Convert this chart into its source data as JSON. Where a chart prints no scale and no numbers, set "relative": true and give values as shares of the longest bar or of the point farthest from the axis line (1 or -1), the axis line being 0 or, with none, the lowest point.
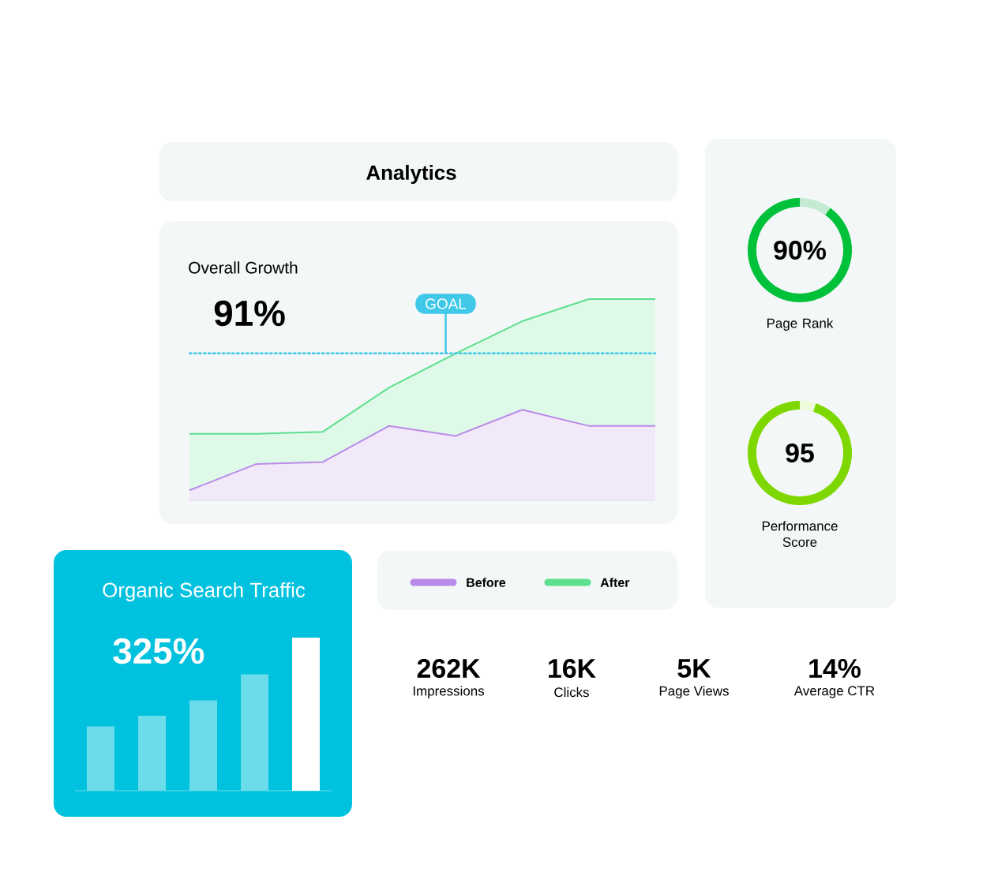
{
  "chart_data": [
    {
      "type": "area",
      "title": "Analytics",
      "subtitle": "Overall Growth",
      "annotations": [
        "91%"
      ],
      "categories": [
        null,
        null,
        null,
        null,
        null,
        null,
        null,
        null
      ],
      "relative": true,
      "legend": "bottom",
      "series": [
        {
          "name": "Before",
          "color": "#b98ae8",
          "values": [
            0.05,
            0.18,
            0.19,
            0.37,
            0.32,
            0.45,
            0.37,
            0.37
          ]
        },
        {
          "name": "After",
          "color": "#5ddf8e",
          "values": [
            0.33,
            0.33,
            0.34,
            0.56,
            0.73,
            0.89,
            1.0,
            1.0
          ]
        }
      ],
      "ref_lines": [
        {
          "axis": "y",
          "value": 0.73,
          "label": "GOAL",
          "color": "#3fc8e8",
          "line_style": "dotted"
        }
      ]
    },
    {
      "type": "donut",
      "title": "Page Rank",
      "annotations": [
        "90%"
      ],
      "categories": [
        null,
        null
      ],
      "values": [
        10,
        90
      ],
      "colors": [
        "#c4ead2",
        "#00c13a"
      ]
    },
    {
      "type": "donut",
      "title": "Performance Score",
      "annotations": [
        "95"
      ],
      "categories": [
        null,
        null
      ],
      "values": [
        5,
        95
      ],
      "colors": [
        "#eefbd8",
        "#7ed800"
      ]
    },
    {
      "type": "bar",
      "title": "Organic Search Traffic",
      "annotations": [
        "325%"
      ],
      "categories": [
        null,
        null,
        null,
        null,
        null
      ],
      "relative": true,
      "values": [
        0.42,
        0.49,
        0.59,
        0.76,
        1.0
      ],
      "colors": [
        "#6adcea",
        "#6adcea",
        "#6adcea",
        "#6adcea",
        "#ffffff"
      ]
    },
    {
      "type": "other",
      "annotations": [
        "262K",
        "Impressions",
        "16K",
        "Clicks",
        "5K",
        "Page Views",
        "14%",
        "Average CTR"
      ]
    }
  ]
}
